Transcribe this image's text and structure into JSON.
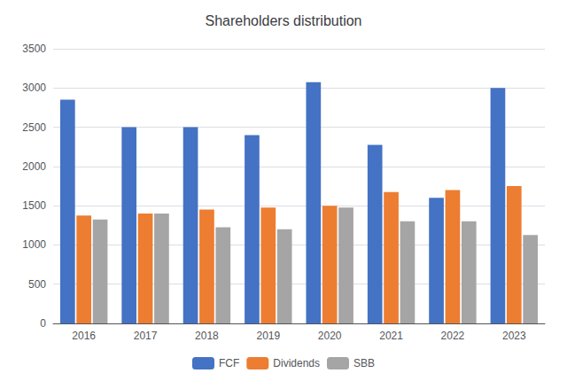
{
  "chart_data": {
    "type": "bar",
    "title": "Shareholders distribution",
    "categories": [
      "2016",
      "2017",
      "2018",
      "2019",
      "2020",
      "2021",
      "2022",
      "2023"
    ],
    "series": [
      {
        "name": "FCF",
        "color": "#4472C4",
        "values": [
          2850,
          2500,
          2500,
          2400,
          3075,
          2275,
          1600,
          3000
        ]
      },
      {
        "name": "Dividends",
        "color": "#ED7D31",
        "values": [
          1375,
          1400,
          1450,
          1475,
          1500,
          1675,
          1700,
          1750
        ]
      },
      {
        "name": "SBB",
        "color": "#A5A5A5",
        "values": [
          1325,
          1400,
          1225,
          1200,
          1475,
          1300,
          1300,
          1125
        ]
      }
    ],
    "ylim": [
      0,
      3500
    ],
    "yticks": [
      0,
      500,
      1000,
      1500,
      2000,
      2500,
      3000,
      3500
    ],
    "grid": true,
    "legend": "bottom"
  }
}
